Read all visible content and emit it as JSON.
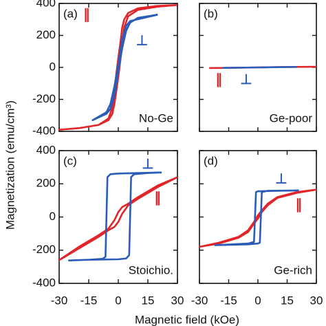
{
  "ylabel": "Magnetization (emu/cm³)",
  "xlabel": "Magnetic field (kOe)",
  "chart_data": [
    {
      "type": "line",
      "panel": "(a)",
      "annotation": "No-Ge",
      "xlim": [
        -30,
        30
      ],
      "ylim": [
        -400,
        400
      ],
      "xticks": [
        -30,
        -15,
        0,
        15,
        30
      ],
      "yticks": [
        -400,
        -200,
        0,
        200,
        400
      ],
      "xtick_labels": false,
      "series": [
        {
          "name": "∥",
          "color": "#e0262b",
          "x": [
            30,
            20,
            10,
            5,
            3,
            2,
            1,
            0,
            -1,
            -2,
            -3,
            -5,
            -10,
            -20,
            -30,
            -20,
            -10,
            -5,
            -3,
            -2,
            -1,
            0,
            1,
            2,
            3,
            5,
            10,
            20,
            30
          ],
          "values": [
            390,
            385,
            370,
            340,
            300,
            250,
            150,
            60,
            -40,
            -150,
            -250,
            -320,
            -360,
            -380,
            -390,
            -380,
            -360,
            -330,
            -290,
            -230,
            -150,
            -60,
            40,
            150,
            250,
            320,
            360,
            380,
            390
          ]
        },
        {
          "name": "⊥",
          "color": "#2a5cb8",
          "x": [
            20,
            10,
            6,
            4,
            2,
            0,
            -2,
            -4,
            -6,
            -13,
            -6,
            -4,
            -2,
            0,
            2,
            4,
            6,
            20
          ],
          "values": [
            330,
            310,
            280,
            230,
            120,
            -20,
            -180,
            -260,
            -290,
            -330,
            -280,
            -230,
            -120,
            20,
            180,
            260,
            290,
            330
          ]
        }
      ]
    },
    {
      "type": "line",
      "panel": "(b)",
      "annotation": "Ge-poor",
      "xlim": [
        -30,
        30
      ],
      "ylim": [
        -400,
        400
      ],
      "xticks": [
        -30,
        -15,
        0,
        15,
        30
      ],
      "yticks": [
        -400,
        -200,
        0,
        200,
        400
      ],
      "xtick_labels": false,
      "ytick_labels": false,
      "series": [
        {
          "name": "∥",
          "color": "#e0262b",
          "x": [
            -25,
            -10,
            0,
            10,
            30
          ],
          "values": [
            -4,
            -2,
            0,
            2,
            4
          ]
        },
        {
          "name": "⊥",
          "color": "#2a5cb8",
          "x": [
            -18,
            0,
            20
          ],
          "values": [
            -3,
            0,
            3
          ]
        }
      ]
    },
    {
      "type": "line",
      "panel": "(c)",
      "annotation": "Stoichio.",
      "xlim": [
        -30,
        30
      ],
      "ylim": [
        -400,
        400
      ],
      "xticks": [
        -30,
        -15,
        0,
        15,
        30
      ],
      "yticks": [
        -400,
        -200,
        0,
        200,
        400
      ],
      "series": [
        {
          "name": "∥",
          "color": "#e0262b",
          "x": [
            30,
            20,
            10,
            5,
            2,
            0,
            -2,
            -5,
            -10,
            -20,
            -30,
            -20,
            -10,
            -5,
            -2,
            0,
            2,
            5,
            10,
            20,
            30
          ],
          "values": [
            240,
            190,
            120,
            80,
            60,
            30,
            -20,
            -70,
            -110,
            -180,
            -260,
            -190,
            -120,
            -80,
            -60,
            -30,
            20,
            70,
            110,
            180,
            240
          ]
        },
        {
          "name": "⊥",
          "color": "#2a5cb8",
          "x": [
            22,
            10,
            0,
            -4,
            -5.5,
            -6,
            -6.5,
            -8,
            -15,
            -25,
            -15,
            0,
            4,
            5.5,
            6,
            6.5,
            8,
            15,
            22
          ],
          "values": [
            268,
            265,
            262,
            258,
            240,
            0,
            -240,
            -252,
            -258,
            -262,
            -258,
            -255,
            -250,
            -230,
            0,
            240,
            258,
            265,
            268
          ]
        }
      ]
    },
    {
      "type": "line",
      "panel": "(d)",
      "annotation": "Ge-rich",
      "xlim": [
        -30,
        30
      ],
      "ylim": [
        -400,
        400
      ],
      "xticks": [
        -30,
        -15,
        0,
        15,
        30
      ],
      "yticks": [
        -400,
        -200,
        0,
        200,
        400
      ],
      "ytick_labels": false,
      "series": [
        {
          "name": "∥",
          "color": "#e0262b",
          "x": [
            30,
            20,
            10,
            5,
            2,
            0,
            -2,
            -5,
            -10,
            -20,
            -30,
            -20,
            -10,
            -5,
            -2,
            0,
            2,
            5,
            10,
            20,
            30
          ],
          "values": [
            165,
            150,
            120,
            80,
            40,
            10,
            -30,
            -80,
            -120,
            -155,
            -180,
            -160,
            -125,
            -90,
            -40,
            -10,
            30,
            70,
            115,
            145,
            165
          ]
        },
        {
          "name": "⊥",
          "color": "#2a5cb8",
          "x": [
            21,
            10,
            0,
            -1,
            -1.5,
            -2,
            -5,
            -22,
            -5,
            0,
            1,
            1.5,
            2,
            5,
            21
          ],
          "values": [
            160,
            158,
            155,
            150,
            0,
            -150,
            -160,
            -170,
            -165,
            -160,
            -155,
            0,
            150,
            158,
            160
          ]
        }
      ]
    }
  ]
}
